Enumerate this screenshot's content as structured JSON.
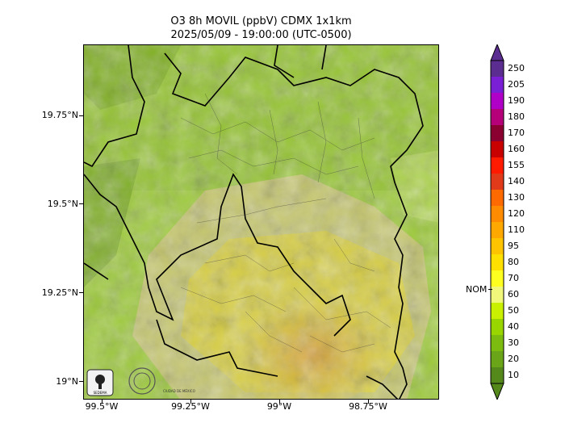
{
  "title": {
    "line1": "O3 8h MOVIL (ppbV) CDMX 1x1km",
    "line2": "2025/05/09 - 19:00:00 (UTC-0500)"
  },
  "axes": {
    "y_labels": [
      "19.75°N",
      "19.5°N",
      "19.25°N",
      "19°N"
    ],
    "x_labels": [
      "99.5°W",
      "99.25°W",
      "99°W",
      "98.75°W"
    ]
  },
  "colorbar": {
    "levels": [
      "250",
      "205",
      "190",
      "180",
      "170",
      "160",
      "155",
      "140",
      "130",
      "120",
      "110",
      "95",
      "80",
      "70",
      "60",
      "50",
      "40",
      "30",
      "20",
      "10"
    ],
    "colors": [
      "#5b2d91",
      "#7a1fd6",
      "#b000c8",
      "#b5007a",
      "#8a0030",
      "#c80000",
      "#ff1a00",
      "#e03a1a",
      "#ff6a00",
      "#ff8c00",
      "#ffa800",
      "#ffc400",
      "#ffe000",
      "#ffff20",
      "#f0f77a",
      "#c8f000",
      "#99d600",
      "#7cbc10",
      "#6aa519",
      "#54881a"
    ],
    "marker_label": "NOM"
  },
  "logos": {
    "logo1": "SEDEMA",
    "logo2": "CIUDAD DE MÉXICO"
  }
}
